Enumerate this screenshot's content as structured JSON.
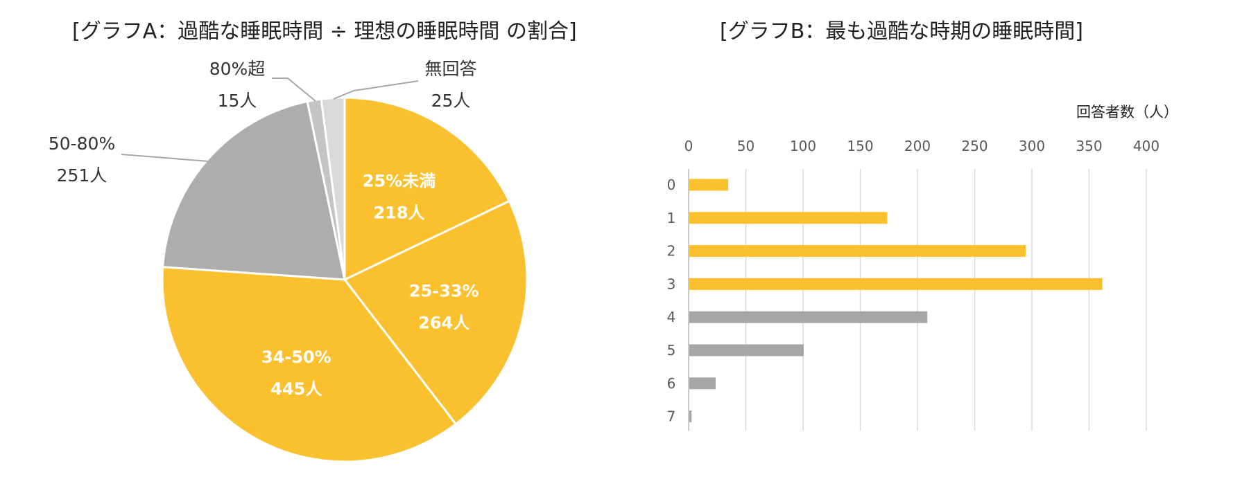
{
  "chart_data": [
    {
      "type": "pie",
      "title": "[グラフA：過酷な睡眠時間 ÷ 理想の睡眠時間 の割合]",
      "slices": [
        {
          "label": "25%未満",
          "value": 218,
          "value_label": "218人",
          "color": "#FBC02D",
          "label_inside": true
        },
        {
          "label": "25-33%",
          "value": 264,
          "value_label": "264人",
          "color": "#FBC02D",
          "label_inside": true
        },
        {
          "label": "34-50%",
          "value": 445,
          "value_label": "445人",
          "color": "#FBC02D",
          "label_inside": true
        },
        {
          "label": "50-80%",
          "value": 251,
          "value_label": "251人",
          "color": "#ADADAD",
          "label_inside": false
        },
        {
          "label": "80%超",
          "value": 15,
          "value_label": "15人",
          "color": "#C4C4C4",
          "label_inside": false
        },
        {
          "label": "無回答",
          "value": 25,
          "value_label": "25人",
          "color": "#D9D9D9",
          "label_inside": false
        }
      ]
    },
    {
      "type": "bar",
      "orientation": "horizontal",
      "title": "[グラフB：最も過酷な時期の睡眠時間]",
      "xlabel": "回答者数（人）",
      "xlim": [
        0,
        400
      ],
      "xticks": [
        "0",
        "50",
        "100",
        "150",
        "200",
        "250",
        "300",
        "350",
        "400"
      ],
      "categories": [
        "0",
        "1",
        "2",
        "3",
        "4",
        "5",
        "6",
        "7"
      ],
      "values": [
        34,
        173,
        294,
        361,
        208,
        100,
        23,
        2
      ],
      "colors": [
        "#FBC02D",
        "#FBC02D",
        "#FBC02D",
        "#FBC02D",
        "#A6A6A6",
        "#A6A6A6",
        "#A6A6A6",
        "#A6A6A6"
      ],
      "grid": true
    }
  ]
}
